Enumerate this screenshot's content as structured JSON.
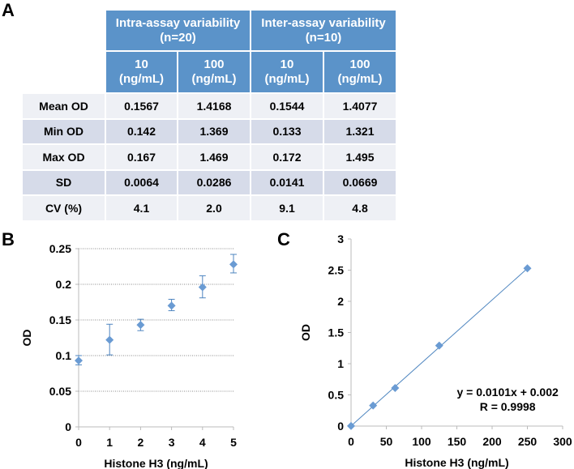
{
  "panels": {
    "a": "A",
    "b": "B",
    "c": "C"
  },
  "table": {
    "group_headers": [
      "Intra-assay variability (n=20)",
      "Inter-assay variability (n=10)"
    ],
    "group_header_lines": [
      [
        "Intra-assay variability",
        "(n=20)"
      ],
      [
        "Inter-assay variability",
        "(n=10)"
      ]
    ],
    "sub_headers": [
      [
        "10",
        "(ng/mL)"
      ],
      [
        "100",
        "(ng/mL)"
      ],
      [
        "10",
        "(ng/mL)"
      ],
      [
        "100",
        "(ng/mL)"
      ]
    ],
    "rows": [
      {
        "label": "Mean OD",
        "values": [
          "0.1567",
          "1.4168",
          "0.1544",
          "1.4077"
        ]
      },
      {
        "label": "Min OD",
        "values": [
          "0.142",
          "1.369",
          "0.133",
          "1.321"
        ]
      },
      {
        "label": "Max OD",
        "values": [
          "0.167",
          "1.469",
          "0.172",
          "1.495"
        ]
      },
      {
        "label": "SD",
        "values": [
          "0.0064",
          "0.0286",
          "0.0141",
          "0.0669"
        ]
      },
      {
        "label": "CV (%)",
        "values": [
          "4.1",
          "2.0",
          "9.1",
          "4.8"
        ]
      }
    ]
  },
  "colors": {
    "header": "#5b93c9",
    "row_light": "#eef0f5",
    "row_dark": "#d6dbe9",
    "marker": "#6a9bd3",
    "line": "#4f86c0"
  },
  "chart_data": [
    {
      "type": "scatter",
      "title": "",
      "xlabel": "Histone H3 (ng/mL)",
      "ylabel": "OD",
      "xlim": [
        0,
        5
      ],
      "ylim": [
        0,
        0.25
      ],
      "xticks": [
        "0",
        "1",
        "2",
        "3",
        "4",
        "5"
      ],
      "yticks": [
        "0",
        "0.05",
        "0.1",
        "0.15",
        "0.2",
        "0.25"
      ],
      "grid": "horizontal dotted",
      "x": [
        0,
        1,
        2,
        3,
        4,
        5
      ],
      "y": [
        0.093,
        0.122,
        0.143,
        0.17,
        0.196,
        0.228
      ],
      "error_low": [
        0.087,
        0.101,
        0.135,
        0.163,
        0.181,
        0.216
      ],
      "error_high": [
        0.1,
        0.144,
        0.151,
        0.179,
        0.212,
        0.242
      ]
    },
    {
      "type": "scatter",
      "title": "",
      "xlabel": "Histone H3 (ng/mL)",
      "ylabel": "OD",
      "xlim": [
        0,
        300
      ],
      "ylim": [
        0,
        3
      ],
      "xticks": [
        "0",
        "50",
        "100",
        "150",
        "200",
        "250",
        "300"
      ],
      "yticks": [
        "0",
        "0.5",
        "1",
        "1.5",
        "2",
        "2.5",
        "3"
      ],
      "grid": "none",
      "x": [
        0,
        31.25,
        62.5,
        125,
        250
      ],
      "y": [
        0.002,
        0.33,
        0.61,
        1.29,
        2.53
      ],
      "trendline": {
        "slope": 0.0101,
        "intercept": 0.002
      },
      "annotations": [
        "y = 0.0101x + 0.002",
        "R = 0.9998"
      ]
    }
  ]
}
